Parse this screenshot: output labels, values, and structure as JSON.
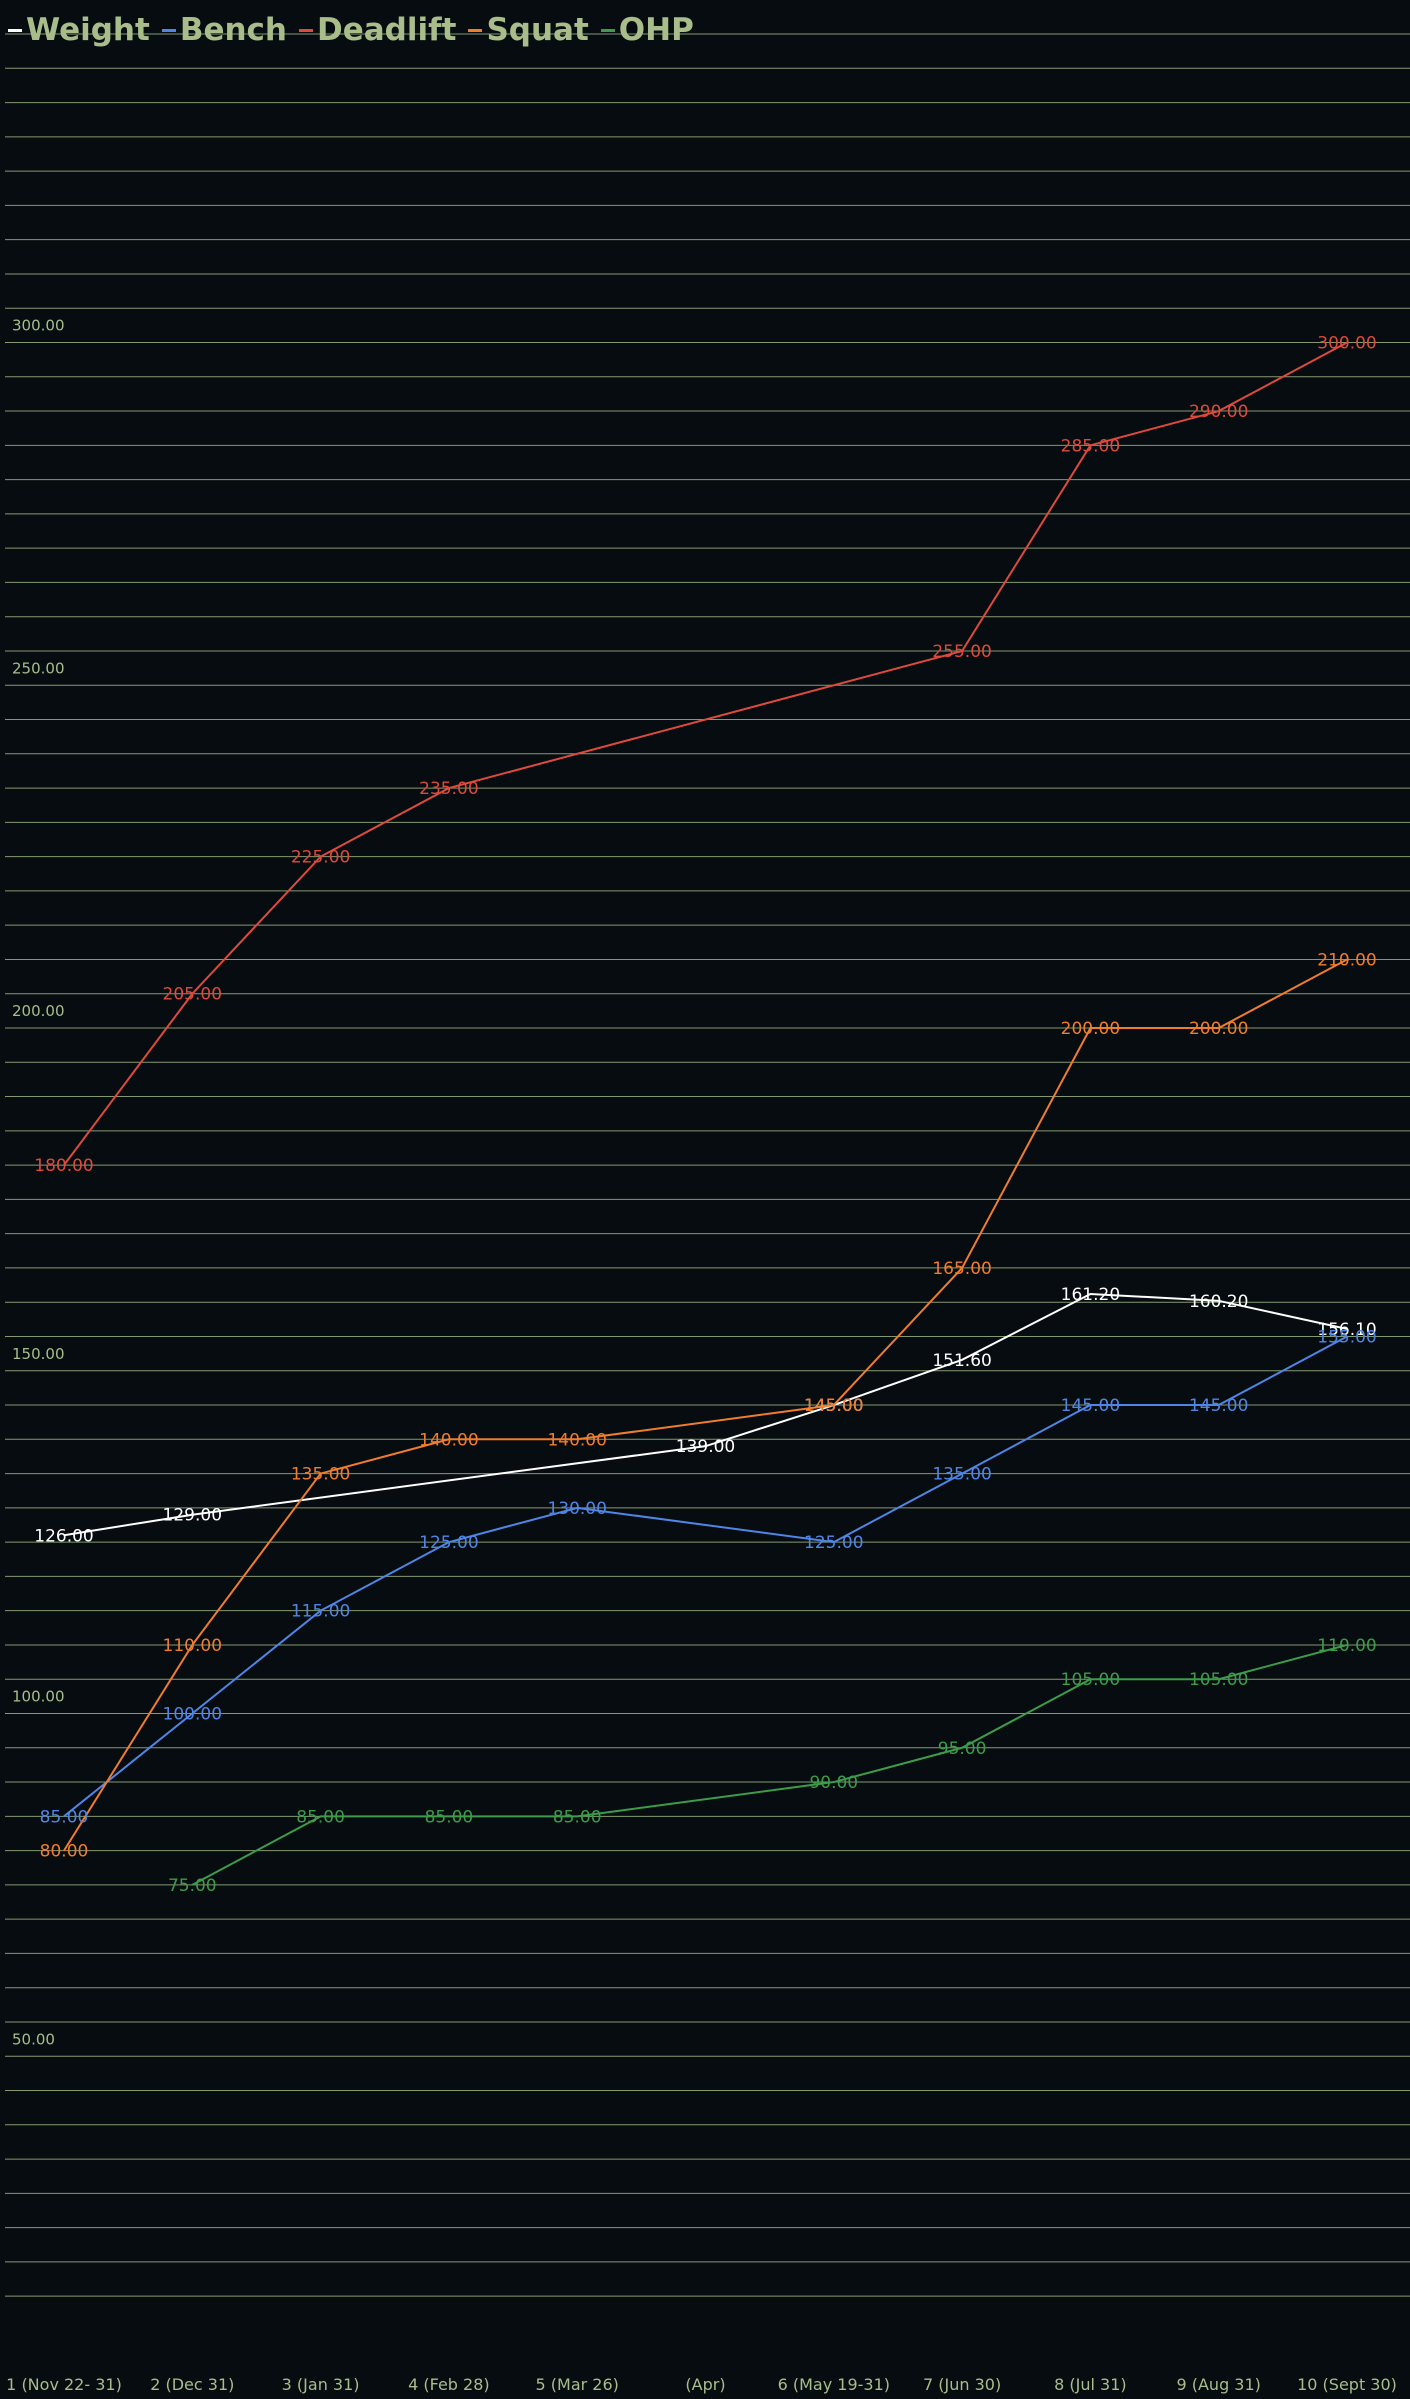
{
  "chart_data": {
    "type": "line",
    "title": "",
    "xlabel": "",
    "ylabel": "",
    "categories": [
      "1 (Nov 22- 31)",
      "2 (Dec 31)",
      "3 (Jan 31)",
      "4 (Feb 28)",
      "5 (Mar 26)",
      "(Apr)",
      "6 (May 19-31)",
      "7 (Jun 30)",
      "8 (Jul 31)",
      "9 (Aug 31)",
      "10 (Sept 30)"
    ],
    "y_ticks": [
      "50.00",
      "100.00",
      "150.00",
      "200.00",
      "250.00",
      "300.00"
    ],
    "ylim": [
      15,
      350
    ],
    "grid": true,
    "legend_position": "top-left",
    "colors": {
      "background": "#060c10",
      "grid": "#9cb383",
      "text": "#a9bd8b"
    },
    "series": [
      {
        "name": "Weight",
        "color": "#ffffff",
        "values": [
          126,
          129,
          null,
          null,
          null,
          139,
          145,
          151.6,
          161.2,
          160.2,
          156.1
        ],
        "labels": [
          "126.00",
          "129.00",
          null,
          null,
          null,
          "139.00",
          "145.00",
          "151.60",
          "161.20",
          "160.20",
          "156.10"
        ]
      },
      {
        "name": "Bench",
        "color": "#4f86e6",
        "values": [
          85,
          100,
          115,
          125,
          130,
          null,
          125,
          135,
          145,
          145,
          155
        ],
        "labels": [
          "85.00",
          "100.00",
          "115.00",
          "125.00",
          "130.00",
          null,
          "125.00",
          "135.00",
          "145.00",
          "145.00",
          "155.00"
        ]
      },
      {
        "name": "Deadlift",
        "color": "#de4a3c",
        "values": [
          180,
          205,
          225,
          235,
          null,
          null,
          null,
          255,
          285,
          290,
          300
        ],
        "labels": [
          "180.00",
          "205.00",
          "225.00",
          "235.00",
          null,
          null,
          null,
          "255.00",
          "285.00",
          "290.00",
          "300.00"
        ]
      },
      {
        "name": "Squat",
        "color": "#f07d2c",
        "values": [
          80,
          110,
          135,
          140,
          140,
          null,
          145,
          165,
          200,
          200,
          210
        ],
        "labels": [
          "80.00",
          "110.00",
          "135.00",
          "140.00",
          "140.00",
          null,
          "145.00",
          "165.00",
          "200.00",
          "200.00",
          "210.00"
        ]
      },
      {
        "name": "OHP",
        "color": "#3c9c4a",
        "values": [
          null,
          75,
          85,
          85,
          85,
          null,
          90,
          95,
          105,
          105,
          110
        ],
        "labels": [
          null,
          "75.00",
          "85.00",
          "85.00",
          "85.00",
          null,
          "90.00",
          "95.00",
          "105.00",
          "105.00",
          "110.00"
        ]
      }
    ]
  }
}
